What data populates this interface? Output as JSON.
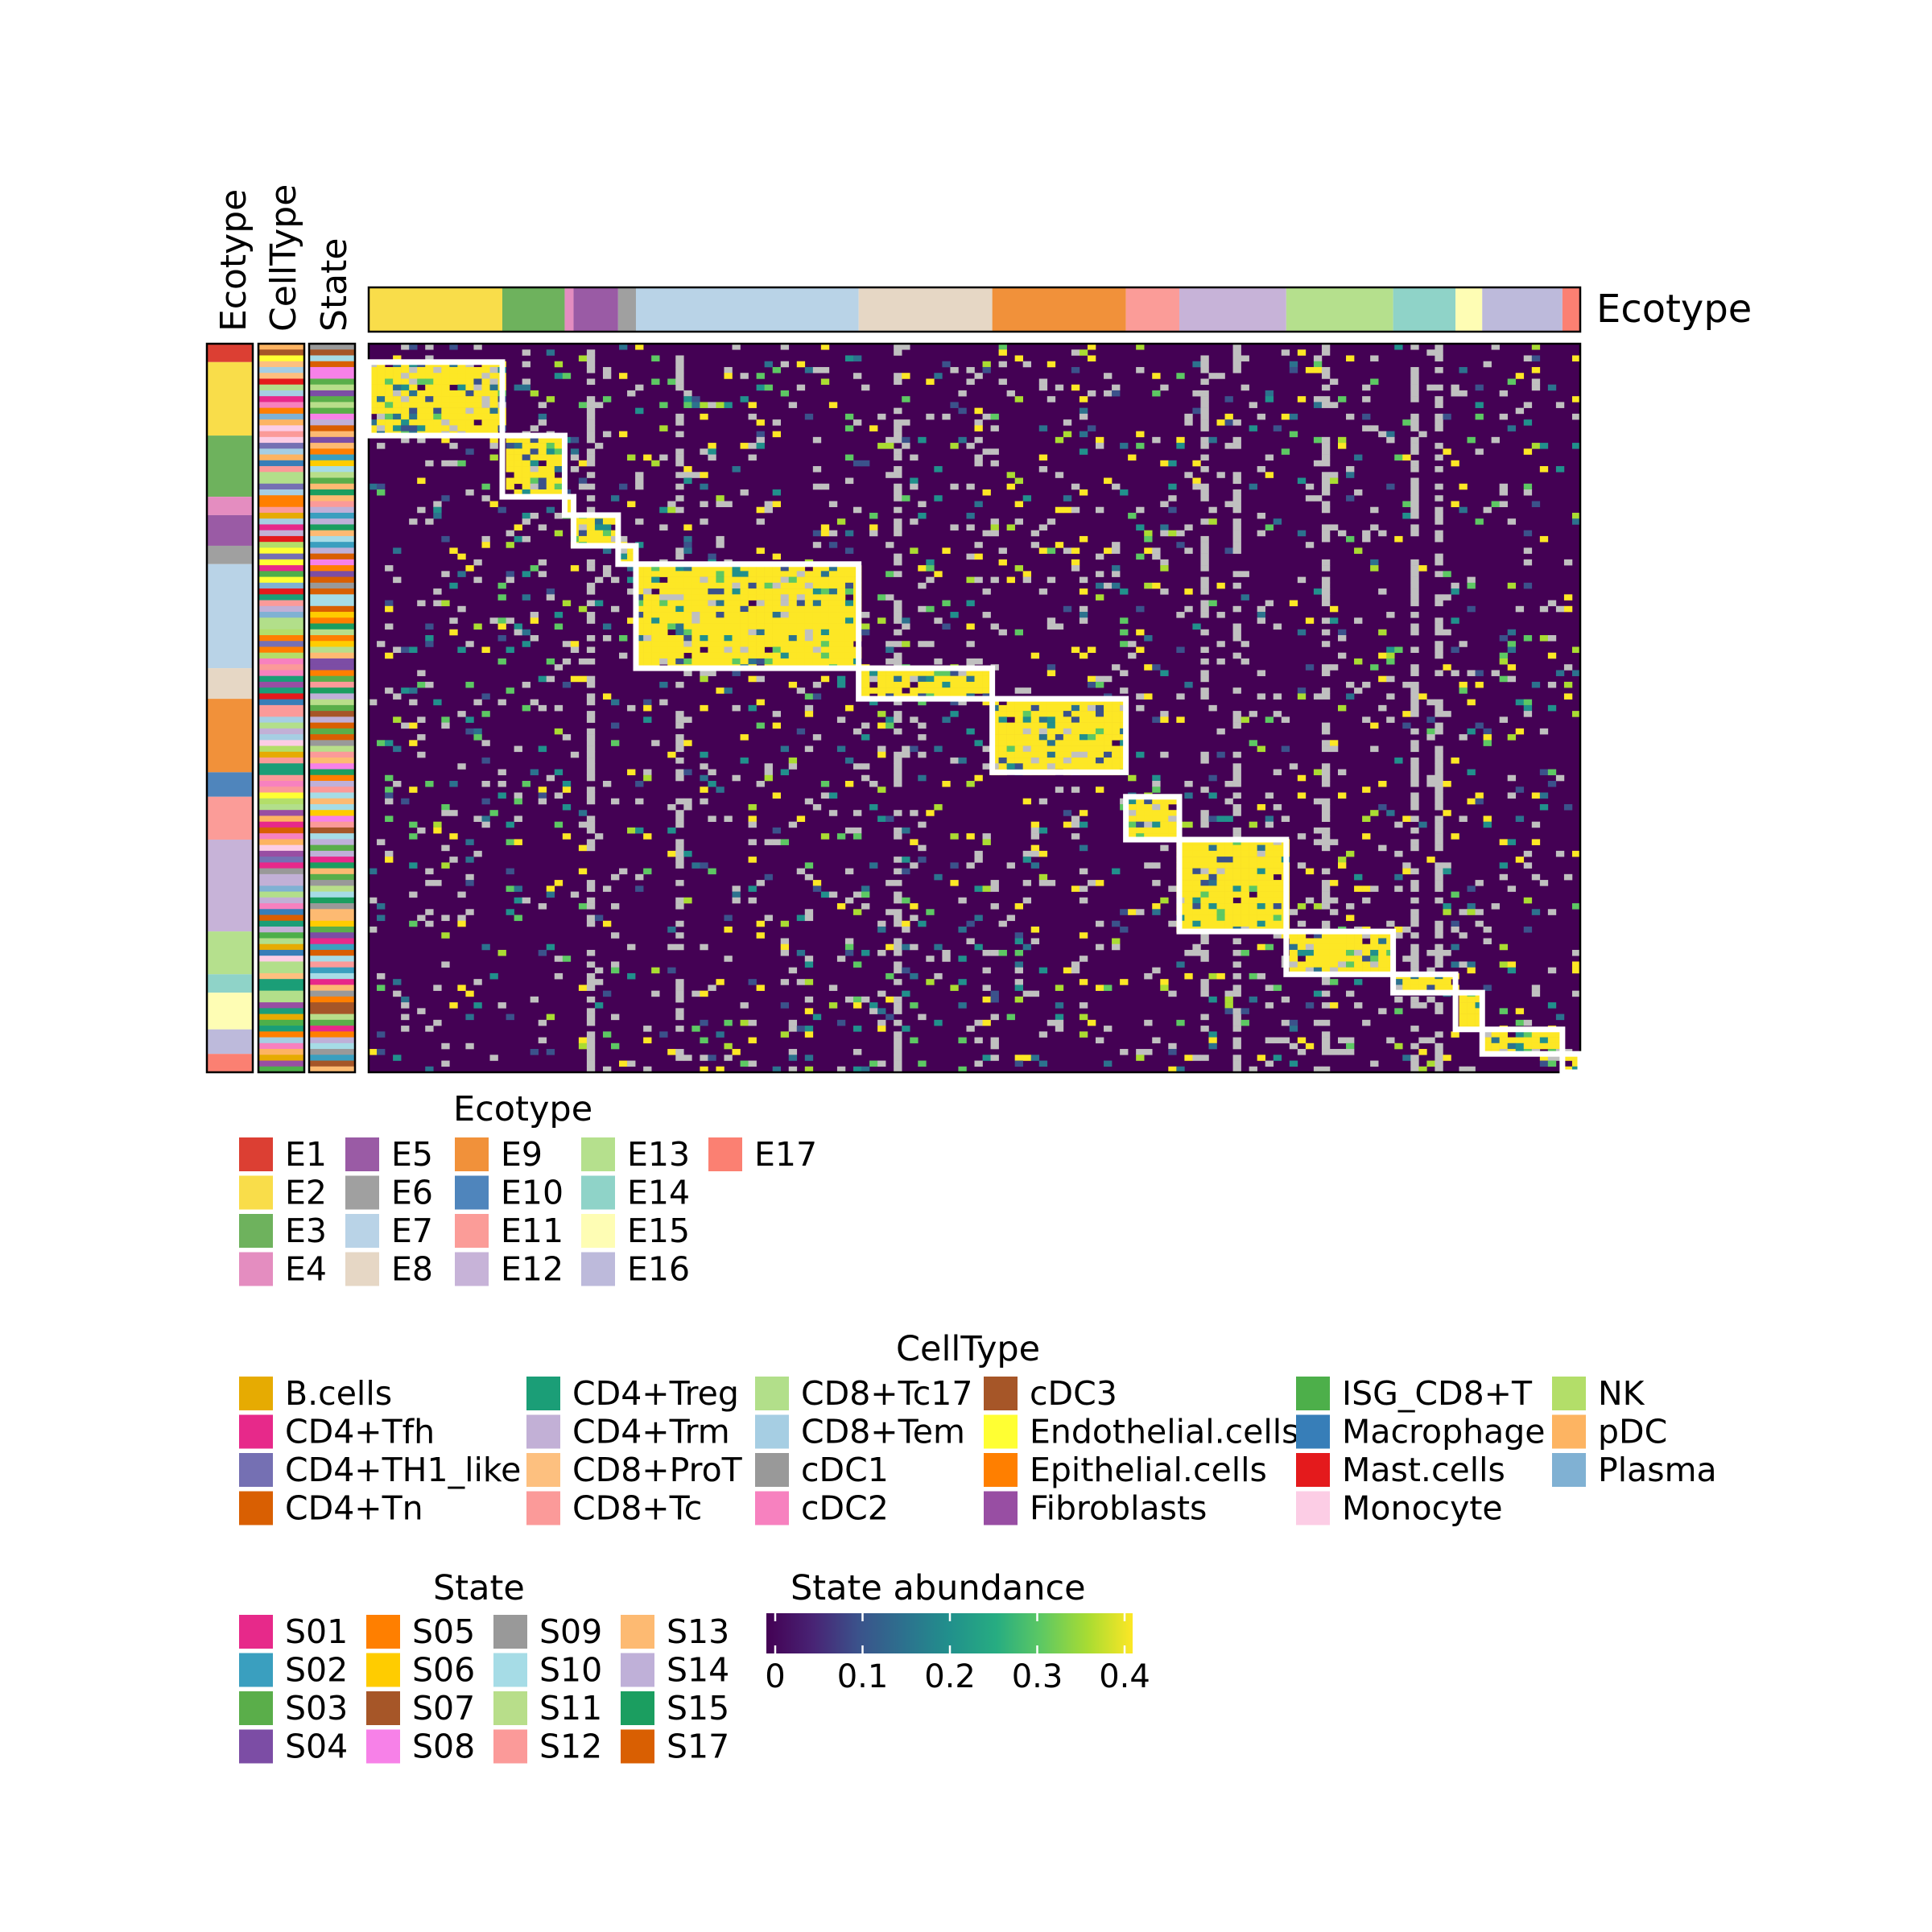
{
  "chart_data": {
    "type": "heatmap",
    "title": "",
    "xlabel": "",
    "ylabel": "",
    "top_annotation_label": "Ecotype",
    "side_annotation_labels": [
      "Ecotype",
      "CellType",
      "State"
    ],
    "ecotypes": [
      {
        "name": "E1",
        "color": "#DC3F33",
        "col_weight": 0,
        "row_weight": 3
      },
      {
        "name": "E2",
        "color": "#F9DD4A",
        "col_weight": 15,
        "row_weight": 12
      },
      {
        "name": "E3",
        "color": "#6EB25D",
        "col_weight": 7,
        "row_weight": 10
      },
      {
        "name": "E4",
        "color": "#E48DC0",
        "col_weight": 1,
        "row_weight": 3
      },
      {
        "name": "E5",
        "color": "#9A5BA5",
        "col_weight": 5,
        "row_weight": 5
      },
      {
        "name": "E6",
        "color": "#A0A0A0",
        "col_weight": 2,
        "row_weight": 3
      },
      {
        "name": "E7",
        "color": "#B9D3E7",
        "col_weight": 25,
        "row_weight": 17
      },
      {
        "name": "E8",
        "color": "#E6D7C5",
        "col_weight": 15,
        "row_weight": 5
      },
      {
        "name": "E9",
        "color": "#F1913A",
        "col_weight": 15,
        "row_weight": 12
      },
      {
        "name": "E10",
        "color": "#4F85BC",
        "col_weight": 0,
        "row_weight": 4
      },
      {
        "name": "E11",
        "color": "#FB9C98",
        "col_weight": 6,
        "row_weight": 7
      },
      {
        "name": "E12",
        "color": "#C7B3D8",
        "col_weight": 12,
        "row_weight": 15
      },
      {
        "name": "E13",
        "color": "#B5E08D",
        "col_weight": 12,
        "row_weight": 7
      },
      {
        "name": "E14",
        "color": "#8FD3C8",
        "col_weight": 7,
        "row_weight": 3
      },
      {
        "name": "E15",
        "color": "#FEFDB4",
        "col_weight": 3,
        "row_weight": 6
      },
      {
        "name": "E16",
        "color": "#BDBADB",
        "col_weight": 9,
        "row_weight": 4
      },
      {
        "name": "E17",
        "color": "#FB8072",
        "col_weight": 2,
        "row_weight": 3
      }
    ],
    "diagonal_blocks": [
      "E2",
      "E3",
      "E4",
      "E5",
      "E6",
      "E7",
      "E8",
      "E9",
      "E11",
      "E12",
      "E13",
      "E14",
      "E15",
      "E16",
      "E17"
    ],
    "n_states": 125,
    "legends": {
      "ecotype": {
        "title": "Ecotype"
      },
      "celltype": {
        "title": "CellType",
        "columns": [
          [
            {
              "label": "B.cells",
              "color": "#E6AB02"
            },
            {
              "label": "CD4+Tfh",
              "color": "#E7298A"
            },
            {
              "label": "CD4+TH1_like",
              "color": "#7570B3"
            },
            {
              "label": "CD4+Tn",
              "color": "#D95F02"
            }
          ],
          [
            {
              "label": "CD4+Treg",
              "color": "#1B9E77"
            },
            {
              "label": "CD4+Trm",
              "color": "#C2B0D6"
            },
            {
              "label": "CD8+ProT",
              "color": "#FDC07F"
            },
            {
              "label": "CD8+Tc",
              "color": "#FB9A99"
            }
          ],
          [
            {
              "label": "CD8+Tc17",
              "color": "#B2DF8A"
            },
            {
              "label": "CD8+Tem",
              "color": "#A6CEE3"
            },
            {
              "label": "cDC1",
              "color": "#999999"
            },
            {
              "label": "cDC2",
              "color": "#F781BF"
            }
          ],
          [
            {
              "label": "cDC3",
              "color": "#A65628"
            },
            {
              "label": "Endothelial.cells",
              "color": "#FFFF33"
            },
            {
              "label": "Epithelial.cells",
              "color": "#FF7F00"
            },
            {
              "label": "Fibroblasts",
              "color": "#984EA3"
            }
          ],
          [
            {
              "label": "ISG_CD8+T",
              "color": "#4DAF4A"
            },
            {
              "label": "Macrophage",
              "color": "#377EB8"
            },
            {
              "label": "Mast.cells",
              "color": "#E41A1C"
            },
            {
              "label": "Monocyte",
              "color": "#FCCDE5"
            }
          ],
          [
            {
              "label": "NK",
              "color": "#B3DE69"
            },
            {
              "label": "pDC",
              "color": "#FDB462"
            },
            {
              "label": "Plasma",
              "color": "#80B1D3"
            }
          ]
        ]
      },
      "state": {
        "title": "State",
        "items": [
          {
            "label": "S01",
            "color": "#E7298A"
          },
          {
            "label": "S02",
            "color": "#3A9FBF"
          },
          {
            "label": "S03",
            "color": "#5AAE4A"
          },
          {
            "label": "S04",
            "color": "#7C4DA5"
          },
          {
            "label": "S05",
            "color": "#FF7F00"
          },
          {
            "label": "S06",
            "color": "#FFCC00"
          },
          {
            "label": "S07",
            "color": "#A65628"
          },
          {
            "label": "S08",
            "color": "#F781E8"
          },
          {
            "label": "S09",
            "color": "#999999"
          },
          {
            "label": "S10",
            "color": "#A6DCE6"
          },
          {
            "label": "S11",
            "color": "#B8DE8A"
          },
          {
            "label": "S12",
            "color": "#FB9A99"
          },
          {
            "label": "S13",
            "color": "#FDBA72"
          },
          {
            "label": "S14",
            "color": "#BFB0D8"
          },
          {
            "label": "S15",
            "color": "#1B9E60"
          },
          {
            "label": "S17",
            "color": "#D95F02"
          }
        ]
      },
      "abundance": {
        "title": "State abundance",
        "range": [
          0,
          0.4
        ],
        "ticks": [
          0,
          0.1,
          0.2,
          0.3,
          0.4
        ],
        "tick_labels": [
          "0",
          "0.1",
          "0.2",
          "0.3",
          "0.4"
        ],
        "colormap": "viridis"
      }
    }
  }
}
